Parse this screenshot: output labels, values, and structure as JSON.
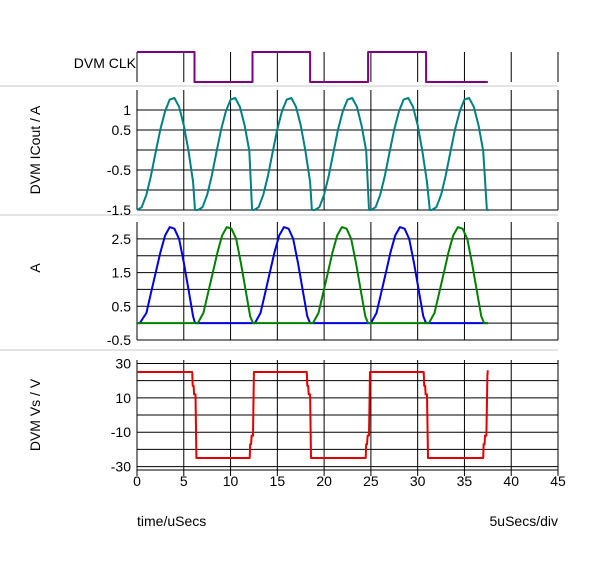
{
  "colors": {
    "clk": "#800080",
    "icout": "#008080",
    "i_blue": "#0000e0",
    "i_green": "#008000",
    "vs": "#e00000",
    "grid": "#000000",
    "separator": "#c8c8c8"
  },
  "footer": {
    "left": "time/uSecs",
    "right": "5uSecs/div"
  },
  "chart_data": {
    "type": "line",
    "xlim": [
      0,
      45
    ],
    "x_ticks": [
      0,
      5,
      10,
      15,
      20,
      25,
      30,
      35,
      40,
      45
    ],
    "x_tick_labels": [
      "0",
      "5",
      "10",
      "15",
      "20",
      "25",
      "30",
      "35",
      "40",
      "45"
    ],
    "grid": true,
    "legend": "none",
    "panels": [
      {
        "id": "clk",
        "ylabel": "DVM CLK",
        "ylim": [
          0,
          1
        ],
        "y_ticks": [],
        "y_tick_labels": [],
        "series": [
          {
            "color": "clk",
            "x": [
              0,
              6.15,
              6.15,
              12.35,
              12.35,
              18.5,
              18.5,
              24.7,
              24.7,
              30.9,
              30.9,
              37.5
            ],
            "y": [
              1,
              1,
              0,
              0,
              1,
              1,
              0,
              0,
              1,
              1,
              0,
              0
            ]
          }
        ]
      },
      {
        "id": "icout",
        "ylabel": "DVM ICout / A",
        "ylim": [
          -1.5,
          1.5
        ],
        "y_ticks": [
          -1.5,
          -1,
          -0.5,
          0,
          0.5,
          1
        ],
        "y_tick_labels": [
          "-1.5",
          "",
          "-0.5",
          "",
          "0.5",
          "1"
        ],
        "series": [
          {
            "color": "icout",
            "x": [
              0,
              0.5,
              1,
              1.5,
              2,
              2.5,
              3,
              3.5,
              4,
              4.5,
              5,
              5.5,
              6,
              6.2,
              6.5,
              7,
              7.5,
              8,
              8.5,
              9,
              9.5,
              10,
              10.5,
              11,
              11.5,
              12,
              12.3,
              12.5,
              13,
              13.5,
              14,
              14.5,
              15,
              15.5,
              16,
              16.5,
              17,
              17.5,
              18,
              18.5,
              18.7,
              19,
              19.5,
              20,
              20.5,
              21,
              21.5,
              22,
              22.5,
              23,
              23.5,
              24,
              24.5,
              24.8,
              25,
              25.5,
              26,
              26.5,
              27,
              27.5,
              28,
              28.5,
              29,
              29.5,
              30,
              30.5,
              31,
              31.3,
              31.5,
              32,
              32.5,
              33,
              33.5,
              34,
              34.5,
              35,
              35.5,
              36,
              36.5,
              37,
              37.4,
              37.6
            ],
            "y": [
              -1.5,
              -1.43,
              -1.12,
              -0.64,
              -0.05,
              0.52,
              0.97,
              1.26,
              1.3,
              1.08,
              0.62,
              -0.02,
              -0.8,
              -1.5,
              -1.5,
              -1.43,
              -1.12,
              -0.64,
              -0.05,
              0.52,
              0.97,
              1.26,
              1.3,
              1.08,
              0.62,
              -0.02,
              -1.5,
              -1.5,
              -1.43,
              -1.12,
              -0.64,
              -0.05,
              0.52,
              0.97,
              1.26,
              1.3,
              1.08,
              0.62,
              -0.02,
              -0.8,
              -1.5,
              -1.5,
              -1.43,
              -1.12,
              -0.64,
              -0.05,
              0.52,
              0.97,
              1.26,
              1.3,
              1.08,
              0.62,
              -0.02,
              -1.5,
              -1.5,
              -1.43,
              -1.12,
              -0.64,
              -0.05,
              0.52,
              0.97,
              1.26,
              1.3,
              1.08,
              0.62,
              -0.02,
              -0.8,
              -1.5,
              -1.5,
              -1.43,
              -1.12,
              -0.64,
              -0.05,
              0.52,
              0.97,
              1.26,
              1.3,
              1.08,
              0.62,
              -0.02,
              -1.5,
              -1.5
            ]
          }
        ]
      },
      {
        "id": "amps",
        "ylabel": "A",
        "ylim": [
          -0.5,
          3
        ],
        "y_ticks": [
          -0.5,
          0,
          0.5,
          1,
          1.5,
          2,
          2.5
        ],
        "y_tick_labels": [
          "-0.5",
          "",
          "0.5",
          "",
          "1.5",
          "",
          "2.5"
        ],
        "series": [
          {
            "color": "i_blue",
            "x": [
              0,
              0.3,
              1,
              1.5,
              2,
              2.5,
              3,
              3.5,
              4,
              4.5,
              5,
              5.5,
              6,
              6.2,
              12.3,
              12.6,
              13.2,
              13.7,
              14.2,
              14.7,
              15.2,
              15.7,
              16.2,
              16.7,
              17.2,
              17.7,
              18.2,
              18.5,
              24.7,
              25,
              25.6,
              26.1,
              26.6,
              27.1,
              27.6,
              28.1,
              28.6,
              29.1,
              29.6,
              30.1,
              30.6,
              30.9,
              37.5
            ],
            "y": [
              0,
              0,
              0.3,
              0.9,
              1.5,
              2.1,
              2.6,
              2.85,
              2.8,
              2.5,
              1.8,
              1.0,
              0.2,
              0,
              0,
              0,
              0.3,
              0.9,
              1.5,
              2.1,
              2.6,
              2.85,
              2.8,
              2.5,
              1.8,
              1.0,
              0.2,
              0,
              0,
              0,
              0.3,
              0.9,
              1.5,
              2.1,
              2.6,
              2.85,
              2.8,
              2.5,
              1.8,
              1.0,
              0.2,
              0,
              0
            ]
          },
          {
            "color": "i_green",
            "x": [
              0,
              6.2,
              6.5,
              7.1,
              7.6,
              8.1,
              8.6,
              9.1,
              9.6,
              10.1,
              10.6,
              11.1,
              11.6,
              12.1,
              12.4,
              18.5,
              18.8,
              19.4,
              19.9,
              20.4,
              20.9,
              21.4,
              21.9,
              22.4,
              22.9,
              23.4,
              23.9,
              24.4,
              24.7,
              30.9,
              31.2,
              31.8,
              32.3,
              32.8,
              33.3,
              33.8,
              34.3,
              34.8,
              35.3,
              35.8,
              36.3,
              36.8,
              37.1,
              37.5
            ],
            "y": [
              0,
              0,
              0,
              0.3,
              0.9,
              1.5,
              2.1,
              2.6,
              2.85,
              2.8,
              2.5,
              1.8,
              1.0,
              0.2,
              0,
              0,
              0,
              0.3,
              0.9,
              1.5,
              2.1,
              2.6,
              2.85,
              2.8,
              2.5,
              1.8,
              1.0,
              0.2,
              0,
              0,
              0,
              0.3,
              0.9,
              1.5,
              2.1,
              2.6,
              2.85,
              2.8,
              2.5,
              1.8,
              1.0,
              0.2,
              0,
              0
            ]
          }
        ]
      },
      {
        "id": "vs",
        "ylabel": "DVM Vs / V",
        "ylim": [
          -32,
          32
        ],
        "y_ticks": [
          -30,
          -20,
          -10,
          0,
          10,
          20,
          30
        ],
        "y_tick_labels": [
          "-30",
          "",
          "-10",
          "",
          "10",
          "",
          "30"
        ],
        "series": [
          {
            "color": "vs",
            "x": [
              0,
              5.9,
              5.95,
              6.05,
              6.1,
              6.25,
              6.35,
              6.4,
              12.05,
              12.1,
              12.2,
              12.25,
              12.4,
              12.5,
              12.55,
              18.15,
              18.2,
              18.3,
              18.35,
              18.5,
              18.6,
              18.65,
              24.45,
              24.5,
              24.6,
              24.65,
              24.8,
              24.9,
              24.95,
              30.65,
              30.7,
              30.8,
              30.85,
              31.0,
              31.1,
              31.15,
              37.0,
              37.05,
              37.15,
              37.2,
              37.35,
              37.45,
              37.5
            ],
            "y": [
              25,
              25,
              17,
              17,
              12,
              12,
              -25,
              -25,
              -25,
              -17,
              -17,
              -12,
              -12,
              25,
              25,
              25,
              17,
              17,
              12,
              12,
              -25,
              -25,
              -25,
              -17,
              -17,
              -12,
              -12,
              25,
              25,
              25,
              17,
              17,
              12,
              12,
              -25,
              -25,
              -25,
              -17,
              -17,
              -12,
              -12,
              23,
              26
            ]
          }
        ]
      }
    ]
  }
}
